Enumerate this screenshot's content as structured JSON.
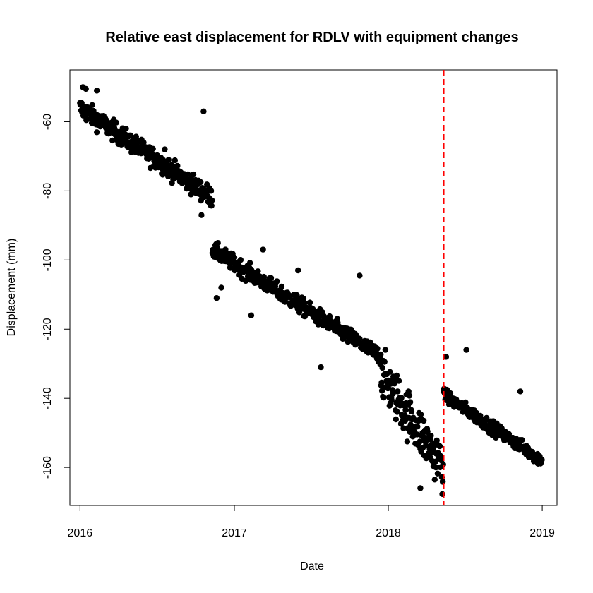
{
  "chart_data": {
    "type": "scatter",
    "title": "Relative east displacement for RDLV with equipment changes",
    "xlabel": "Date",
    "ylabel": "Displacement (mm)",
    "xlim": [
      "2015-12-08",
      "2019-02-05"
    ],
    "ylim": [
      -171,
      -45
    ],
    "x_ticks": [
      "2016",
      "2017",
      "2018",
      "2019"
    ],
    "y_ticks": [
      -60,
      -80,
      -100,
      -120,
      -140,
      -160
    ],
    "grid": false,
    "legend": "none",
    "point_color": "#000000",
    "equipment_change": {
      "date": "2018-05-12",
      "color": "#ff0000",
      "style": "dashed"
    },
    "segments": [
      {
        "start": "2016-01-01",
        "end": "2016-11-10",
        "y_start": -56,
        "y_end": -82,
        "spread": 2.6
      },
      {
        "start": "2016-11-10",
        "end": "2017-12-15",
        "y_start": -97,
        "y_end": -128,
        "spread": 2.2
      },
      {
        "start": "2017-12-15",
        "end": "2018-05-12",
        "y_start": -133,
        "y_end": -160,
        "spread": 6.5
      },
      {
        "start": "2018-05-12",
        "end": "2019-01-01",
        "y_start": -139,
        "y_end": -158,
        "spread": 1.7
      }
    ],
    "outliers": [
      {
        "x": "2016-01-08",
        "y": -50
      },
      {
        "x": "2016-01-15",
        "y": -50.5
      },
      {
        "x": "2016-02-10",
        "y": -51
      },
      {
        "x": "2016-10-20",
        "y": -57
      },
      {
        "x": "2016-07-20",
        "y": -68
      },
      {
        "x": "2016-10-15",
        "y": -87
      },
      {
        "x": "2016-11-20",
        "y": -111
      },
      {
        "x": "2016-12-01",
        "y": -108
      },
      {
        "x": "2017-02-10",
        "y": -116
      },
      {
        "x": "2017-03-10",
        "y": -97
      },
      {
        "x": "2017-06-01",
        "y": -103
      },
      {
        "x": "2017-07-25",
        "y": -131
      },
      {
        "x": "2017-10-25",
        "y": -104.5
      },
      {
        "x": "2018-03-18",
        "y": -166
      },
      {
        "x": "2018-05-10",
        "y": -164
      },
      {
        "x": "2018-05-18",
        "y": -128
      },
      {
        "x": "2018-07-05",
        "y": -126
      },
      {
        "x": "2018-11-10",
        "y": -138
      }
    ]
  }
}
